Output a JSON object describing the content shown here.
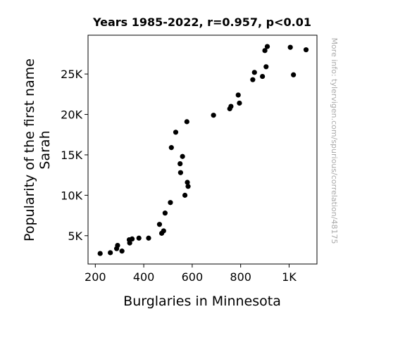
{
  "chart_data": {
    "type": "scatter",
    "title": "Years 1985-2022, r=0.957, p<0.01",
    "xlabel": "Burglaries in Minnesota",
    "ylabel_lines": [
      "Popularity of the first name",
      "Sarah"
    ],
    "xlim": [
      170,
      1115
    ],
    "ylim": [
      1500,
      29800
    ],
    "x_ticks": [
      {
        "value": 200,
        "label": "200"
      },
      {
        "value": 400,
        "label": "400"
      },
      {
        "value": 600,
        "label": "600"
      },
      {
        "value": 800,
        "label": "800"
      },
      {
        "value": 1000,
        "label": "1K"
      }
    ],
    "y_ticks": [
      {
        "value": 5000,
        "label": "5K"
      },
      {
        "value": 10000,
        "label": "10K"
      },
      {
        "value": 15000,
        "label": "15K"
      },
      {
        "value": 20000,
        "label": "20K"
      },
      {
        "value": 25000,
        "label": "25K"
      }
    ],
    "grid": false,
    "marker_color": "#000000",
    "watermark": "More info: tylervigen.com/spurious/correlation/48175",
    "points": [
      {
        "x": 1070,
        "y": 28000
      },
      {
        "x": 1005,
        "y": 28300
      },
      {
        "x": 1018,
        "y": 24900
      },
      {
        "x": 910,
        "y": 28400
      },
      {
        "x": 900,
        "y": 27900
      },
      {
        "x": 905,
        "y": 25900
      },
      {
        "x": 890,
        "y": 24700
      },
      {
        "x": 857,
        "y": 25200
      },
      {
        "x": 850,
        "y": 24300
      },
      {
        "x": 790,
        "y": 22400
      },
      {
        "x": 795,
        "y": 21400
      },
      {
        "x": 760,
        "y": 21000
      },
      {
        "x": 755,
        "y": 20700
      },
      {
        "x": 688,
        "y": 19900
      },
      {
        "x": 578,
        "y": 19100
      },
      {
        "x": 532,
        "y": 17800
      },
      {
        "x": 514,
        "y": 15900
      },
      {
        "x": 560,
        "y": 14800
      },
      {
        "x": 550,
        "y": 13900
      },
      {
        "x": 552,
        "y": 12800
      },
      {
        "x": 580,
        "y": 11600
      },
      {
        "x": 583,
        "y": 11100
      },
      {
        "x": 570,
        "y": 10000
      },
      {
        "x": 510,
        "y": 9100
      },
      {
        "x": 488,
        "y": 7800
      },
      {
        "x": 465,
        "y": 6400
      },
      {
        "x": 482,
        "y": 5600
      },
      {
        "x": 474,
        "y": 5300
      },
      {
        "x": 420,
        "y": 4700
      },
      {
        "x": 380,
        "y": 4700
      },
      {
        "x": 352,
        "y": 4600
      },
      {
        "x": 340,
        "y": 4500
      },
      {
        "x": 342,
        "y": 4100
      },
      {
        "x": 292,
        "y": 3800
      },
      {
        "x": 288,
        "y": 3400
      },
      {
        "x": 310,
        "y": 3100
      },
      {
        "x": 262,
        "y": 2900
      },
      {
        "x": 220,
        "y": 2800
      }
    ]
  }
}
